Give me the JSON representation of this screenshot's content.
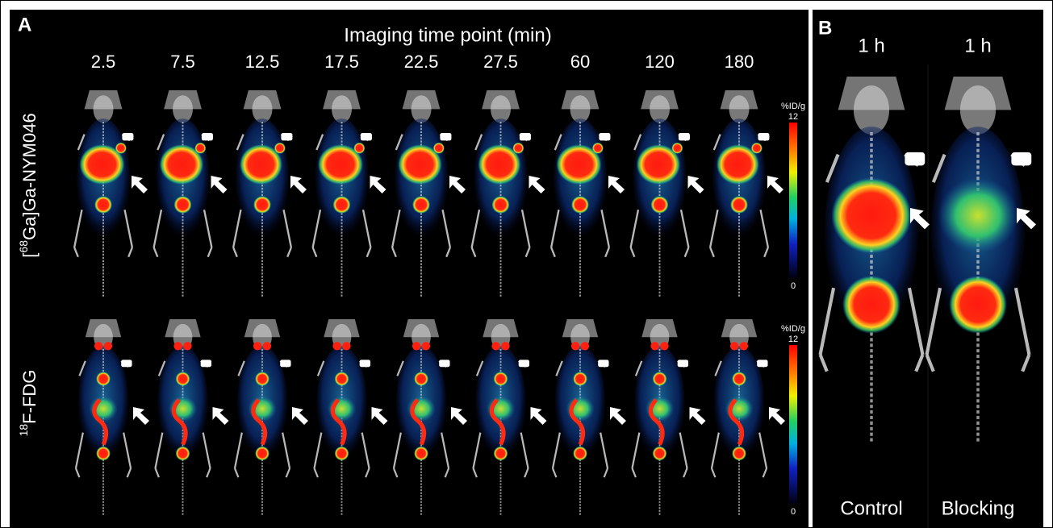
{
  "panel_a": {
    "label": "A",
    "title": "Imaging time point (min)",
    "time_points": [
      "2.5",
      "7.5",
      "12.5",
      "17.5",
      "22.5",
      "27.5",
      "60",
      "120",
      "180"
    ],
    "rows": [
      {
        "prefix": "[",
        "sup": "68",
        "text": "Ga]Ga-NYM046",
        "scale_unit": "%ID/g",
        "scale_max": "12",
        "scale_min": "0"
      },
      {
        "prefix": "",
        "sup": "18",
        "text": "F-FDG",
        "scale_unit": "%ID/g",
        "scale_max": "12",
        "scale_min": "0"
      }
    ]
  },
  "panel_b": {
    "label": "B",
    "columns": [
      {
        "time": "1 h",
        "label": "Control"
      },
      {
        "time": "1 h",
        "label": "Blocking"
      }
    ]
  }
}
